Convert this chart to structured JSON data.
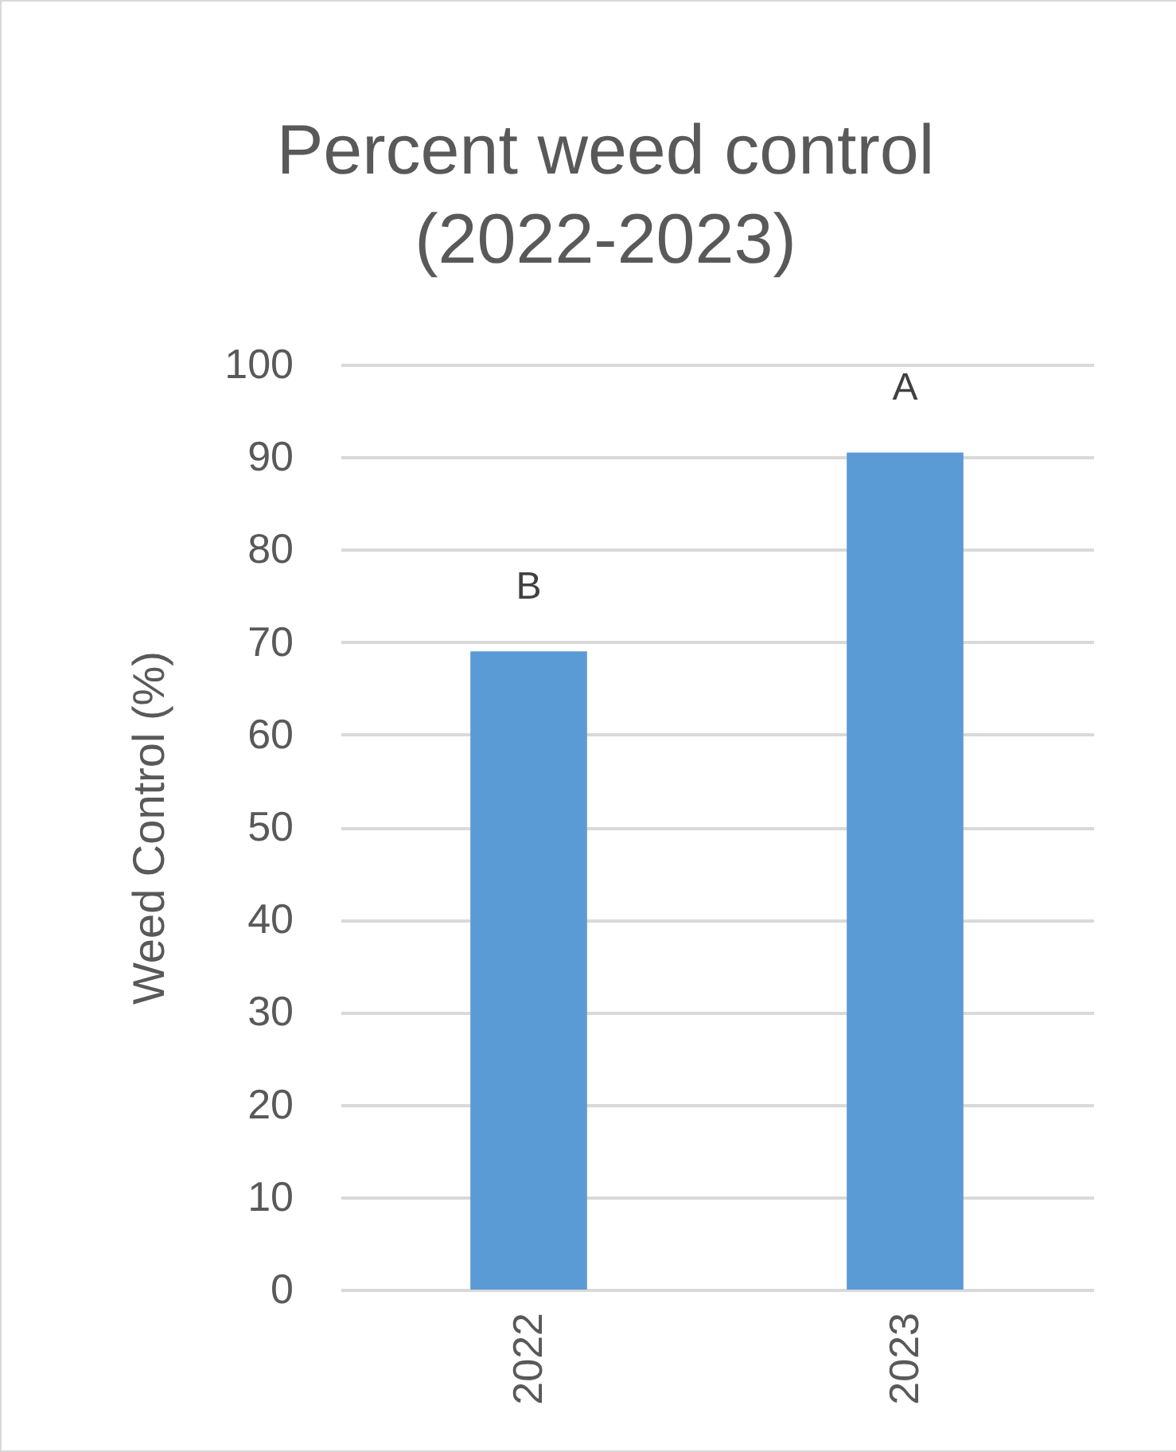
{
  "chart_data": {
    "type": "bar",
    "title": "Percent weed control (2022-2023)",
    "ylabel": "Weed Control (%)",
    "categories": [
      "2022",
      "2023"
    ],
    "values": [
      69,
      90.5
    ],
    "color": "#5b9bd5",
    "ylim": [
      0,
      100
    ],
    "yticks": [
      0,
      10,
      20,
      30,
      40,
      50,
      60,
      70,
      80,
      90,
      100
    ],
    "grid": "y",
    "annotations": [
      {
        "text": "B",
        "x": "2022",
        "y": 69
      },
      {
        "text": "A",
        "x": "2023",
        "y": 90.5
      }
    ]
  }
}
